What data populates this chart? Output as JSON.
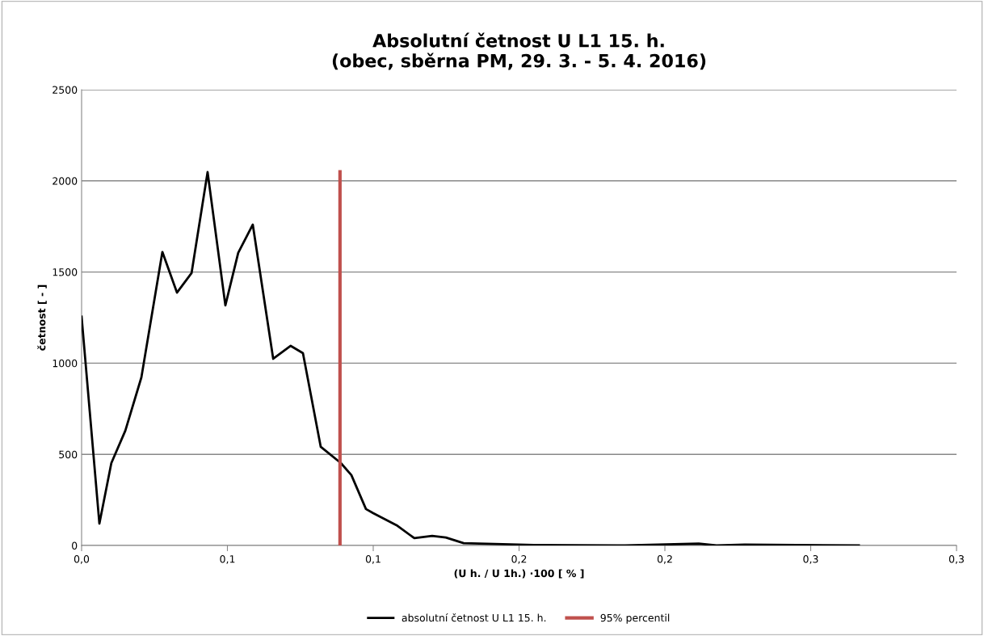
{
  "chart_data": {
    "type": "line",
    "title": "Absolutní četnost U L1 15. h.\n(obec, sběrna PM, 29. 3. - 5. 4. 2016)",
    "xlabel": "(U h. / U 1h.) ·100 [ % ]",
    "ylabel": "četnost [ - ]",
    "xlim": [
      0,
      0.3
    ],
    "xticks": [
      {
        "value": 0,
        "label": "0,0"
      },
      {
        "value": 0.05,
        "label": "0,1"
      },
      {
        "value": 0.1,
        "label": "0,1"
      },
      {
        "value": 0.15,
        "label": "0,2"
      },
      {
        "value": 0.2,
        "label": "0,2"
      },
      {
        "value": 0.25,
        "label": "0,3"
      },
      {
        "value": 0.3,
        "label": "0,3"
      }
    ],
    "ylim": [
      0,
      2500
    ],
    "yticks": [
      0,
      500,
      1000,
      1500,
      2000,
      2500
    ],
    "grid": "y",
    "legend": "bottom",
    "marker": "none",
    "line_style": "solid",
    "series": [
      {
        "name": "absolutní četnost U L1 15. h.",
        "color": "#000000",
        "x": [
          0,
          0.0061,
          0.0102,
          0.015,
          0.0205,
          0.0277,
          0.0327,
          0.0377,
          0.0432,
          0.0493,
          0.0537,
          0.0587,
          0.0657,
          0.0717,
          0.0759,
          0.082,
          0.0889,
          0.0925,
          0.0975,
          0.1,
          0.108,
          0.1141,
          0.1202,
          0.1249,
          0.131,
          0.1551,
          0.1864,
          0.2116,
          0.2177,
          0.2274,
          0.2665
        ],
        "values": [
          1255,
          120,
          452,
          630,
          922,
          1610,
          1387,
          1494,
          2048,
          1317,
          1605,
          1760,
          1024,
          1095,
          1055,
          541,
          452,
          386,
          200,
          177,
          111,
          40,
          53,
          44,
          13,
          3,
          0,
          10,
          0,
          5,
          0
        ]
      },
      {
        "name": "95% percentil",
        "color": "#c0504d",
        "x": [
          0.0886,
          0.0886
        ],
        "values": [
          0,
          2050
        ]
      }
    ]
  }
}
